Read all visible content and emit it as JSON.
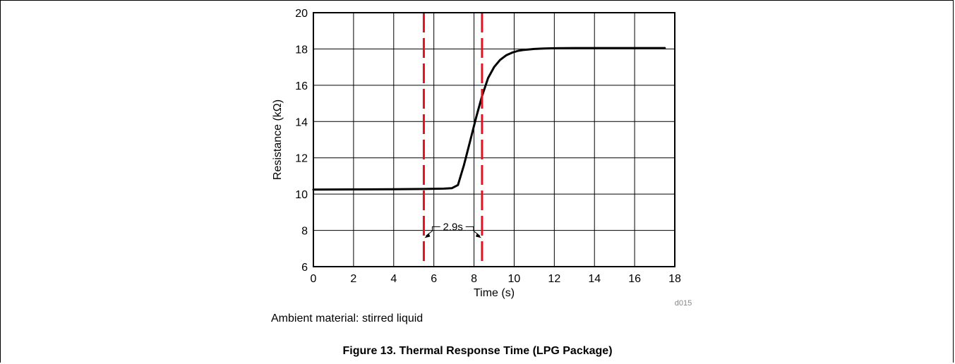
{
  "page": {
    "ambient_note": "Ambient material: stirred liquid",
    "figure_caption": "Figure 13. Thermal Response Time (LPG Package)"
  },
  "chart_data": {
    "type": "line",
    "title": "",
    "xlabel": "Time (s)",
    "ylabel": "Resistance (kΩ)",
    "xlim": [
      0,
      18
    ],
    "ylim": [
      6,
      20
    ],
    "xticks": [
      0,
      2,
      4,
      6,
      8,
      10,
      12,
      14,
      16,
      18
    ],
    "yticks": [
      6,
      8,
      10,
      12,
      14,
      16,
      18,
      20
    ],
    "grid": true,
    "series": [
      {
        "color": "#000000",
        "x": [
          0,
          2,
          4,
          5.5,
          6.5,
          6.9,
          7.2,
          7.5,
          7.8,
          8.1,
          8.4,
          8.7,
          9.0,
          9.3,
          9.6,
          9.9,
          10.2,
          10.5,
          11.0,
          11.5,
          12.0,
          13.0,
          14.0,
          16.0,
          17.5
        ],
        "y": [
          10.25,
          10.26,
          10.27,
          10.28,
          10.3,
          10.33,
          10.5,
          11.6,
          12.9,
          14.2,
          15.4,
          16.4,
          17.0,
          17.4,
          17.65,
          17.8,
          17.9,
          17.95,
          18.0,
          18.03,
          18.04,
          18.05,
          18.05,
          18.05,
          18.05
        ]
      }
    ],
    "annotations": {
      "vlines": [
        5.5,
        8.4
      ],
      "vline_color": "#e8101e",
      "interval_label": "2.9s",
      "interval_y": 8.2,
      "code": "d015"
    }
  }
}
